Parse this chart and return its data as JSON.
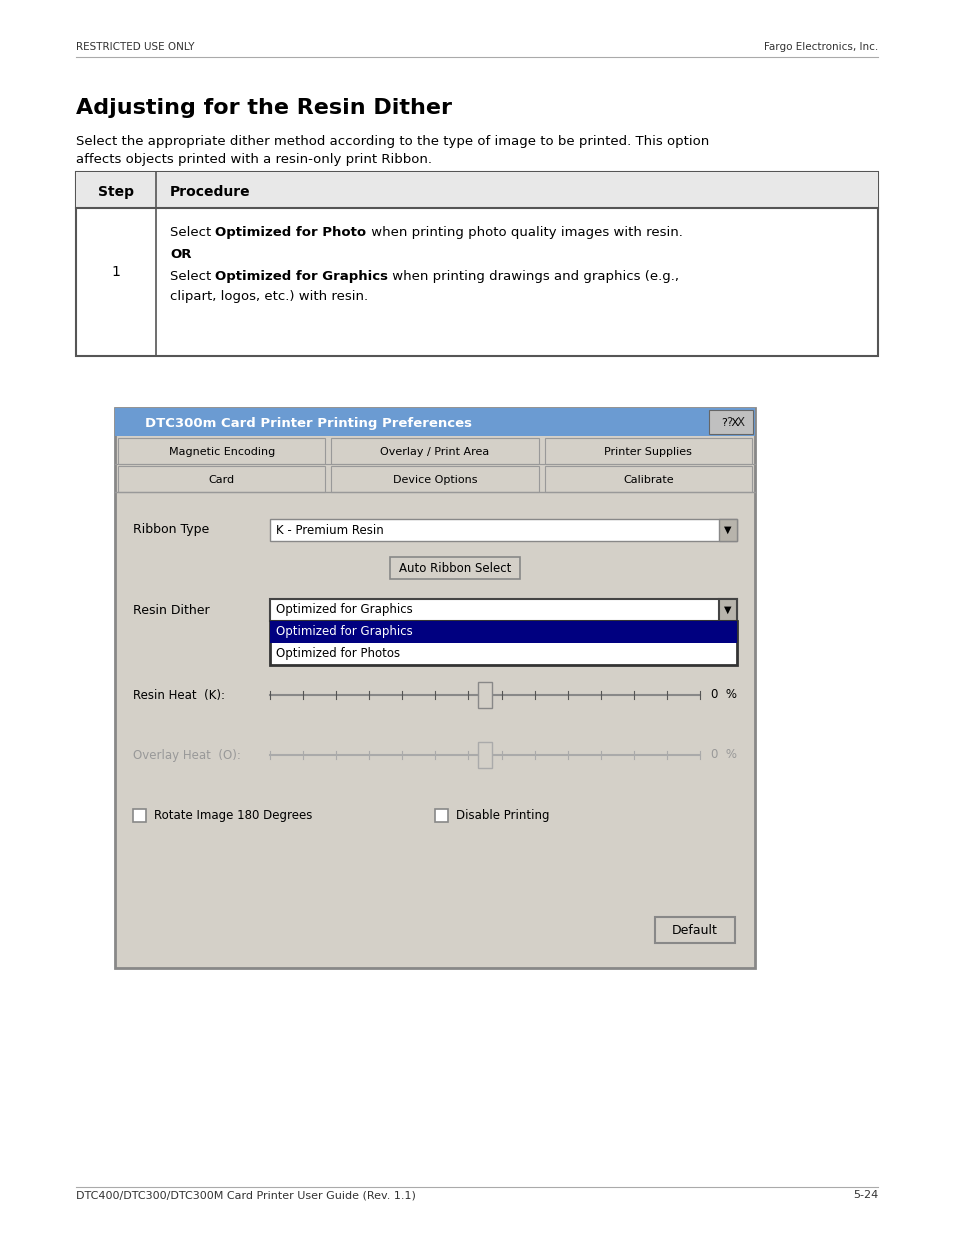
{
  "page_bg": "#ffffff",
  "header_left": "RESTRICTED USE ONLY",
  "header_right": "Fargo Electronics, Inc.",
  "title": "Adjusting for the Resin Dither",
  "intro_line1": "Select the appropriate dither method according to the type of image to be printed. This option",
  "intro_line2": "affects objects printed with a resin-only print Ribbon.",
  "table_header_step": "Step",
  "table_header_proc": "Procedure",
  "row1_step": "1",
  "row1_line1_normal1": "Select ",
  "row1_line1_bold1": "Optimized for Photo",
  "row1_line1_normal2": " when printing photo quality images with resin.",
  "row1_line2_bold": "OR",
  "row1_line3_normal1": "Select ",
  "row1_line3_bold1": "Optimized for Graphics",
  "row1_line3_normal2": " when printing drawings and graphics (e.g.,",
  "row1_line4": "clipart, logos, etc.) with resin.",
  "dlg_title": "DTC300m Card Printer Printing Preferences",
  "dlg_title_bg": "#6b9bd2",
  "dlg_bg": "#d4d0c8",
  "dlg_tab1a": "Magnetic Encoding",
  "dlg_tab1b": "Overlay / Print Area",
  "dlg_tab1c": "Printer Supplies",
  "dlg_tab2a": "Card",
  "dlg_tab2b": "Device Options",
  "dlg_tab2c": "Calibrate",
  "ribbon_label": "Ribbon Type",
  "ribbon_value": "K - Premium Resin",
  "auto_btn": "Auto Ribbon Select",
  "resin_dither_label": "Resin Dither",
  "dd_value": "Optimized for Graphics",
  "dd_item1": "Optimized for Graphics",
  "dd_item2": "Optimized for Photos",
  "resin_heat_label": "Resin Heat  (K):",
  "resin_heat_val": "0  %",
  "overlay_heat_label": "Overlay Heat  (O):",
  "overlay_heat_val": "0  %",
  "chk1": "Rotate Image 180 Degrees",
  "chk2": "Disable Printing",
  "default_btn": "Default",
  "footer_left": "DTC400/DTC300/DTC300M Card Printer User Guide (Rev. 1.1)",
  "footer_right": "5-24"
}
